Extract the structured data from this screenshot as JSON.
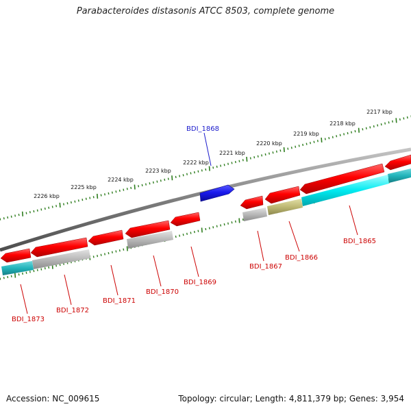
{
  "title": "Parabacteroides distasonis ATCC 8503, complete genome",
  "footer": {
    "accession": "Accession: NC_009615",
    "summary": "Topology: circular; Length: 4,811,379 bp; Genes: 3,954"
  },
  "scale_labels": [
    "2226 kbp",
    "2225 kbp",
    "2224 kbp",
    "2223 kbp",
    "2222 kbp",
    "2221 kbp",
    "2220 kbp",
    "2219 kbp",
    "2218 kbp",
    "2217 kbp"
  ],
  "colors": {
    "forward_gene": "#1a1acc",
    "reverse_gene": "#e60000",
    "grey_feature": "#b0b0b0",
    "cyan_feature": "#00e0e6",
    "olive_feature": "#b8b470",
    "backbone": "#8a8a8a",
    "tick": "#2e7d1e",
    "forward_label": "#1a1acc",
    "reverse_label": "#cc0000"
  },
  "genes": [
    {
      "label": "BDI_1868",
      "strand": "+"
    },
    {
      "label": "BDI_1865",
      "strand": "-"
    },
    {
      "label": "BDI_1866",
      "strand": "-"
    },
    {
      "label": "BDI_1867",
      "strand": "-"
    },
    {
      "label": "BDI_1869",
      "strand": "-"
    },
    {
      "label": "BDI_1870",
      "strand": "-"
    },
    {
      "label": "BDI_1871",
      "strand": "-"
    },
    {
      "label": "BDI_1872",
      "strand": "-"
    },
    {
      "label": "BDI_1873",
      "strand": "-"
    }
  ]
}
